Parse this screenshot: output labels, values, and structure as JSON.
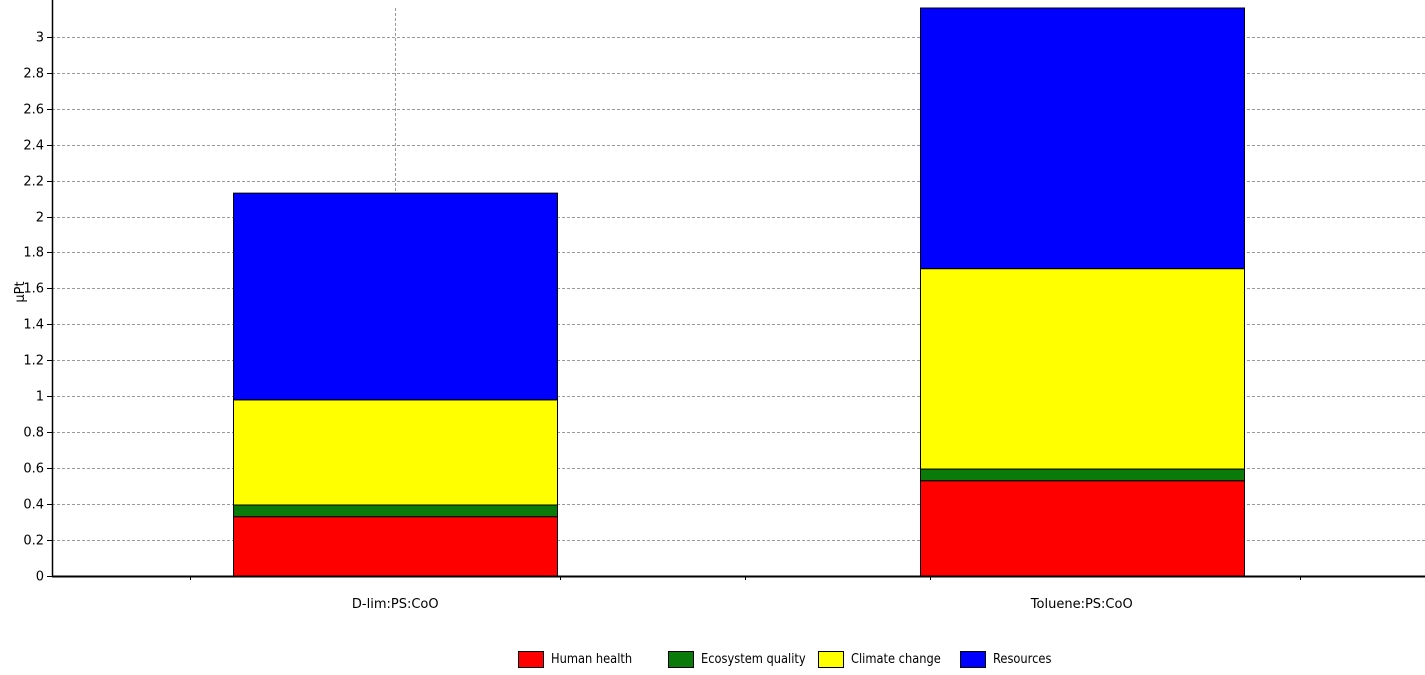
{
  "chart_data": {
    "type": "bar",
    "stacked": true,
    "title": "",
    "xlabel": "",
    "ylabel": "µPt",
    "ylim": [
      0,
      3.16
    ],
    "yticks": [
      0,
      0.2,
      0.4,
      0.6,
      0.8,
      1,
      1.2,
      1.4,
      1.6,
      1.8,
      2,
      2.2,
      2.4,
      2.6,
      2.8,
      3
    ],
    "ytick_labels": [
      "0",
      "0.2",
      "0.4",
      "0.6",
      "0.8",
      "1",
      "1.2",
      "1.4",
      "1.6",
      "1.8",
      "2",
      "2.2",
      "2.4",
      "2.6",
      "2.8",
      "3"
    ],
    "categories": [
      "D-lim:PS:CoO",
      "Toluene:PS:CoO"
    ],
    "grid": true,
    "legend_position": "bottom",
    "series": [
      {
        "name": "Human health",
        "color": "#ff0000",
        "values": [
          0.33,
          0.53
        ]
      },
      {
        "name": "Ecosystem quality",
        "color": "#0a7a0a",
        "values": [
          0.065,
          0.065
        ]
      },
      {
        "name": "Climate change",
        "color": "#ffff00",
        "values": [
          0.585,
          1.115
        ]
      },
      {
        "name": "Resources",
        "color": "#0000ff",
        "values": [
          1.15,
          1.45
        ]
      }
    ]
  }
}
